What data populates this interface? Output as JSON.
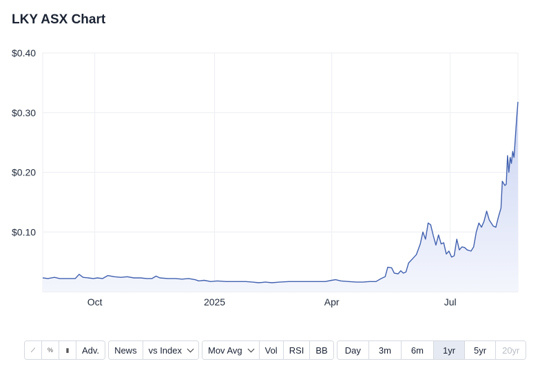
{
  "title": "LKY ASX Chart",
  "chart_data": {
    "type": "area",
    "ylim": [
      0,
      0.4
    ],
    "y_ticks": [
      {
        "value": 0.1,
        "label": "$0.10"
      },
      {
        "value": 0.2,
        "label": "$0.20"
      },
      {
        "value": 0.3,
        "label": "$0.30"
      },
      {
        "value": 0.4,
        "label": "$0.40"
      }
    ],
    "x_range": [
      "2024-08-22",
      "2025-08-22"
    ],
    "x_ticks": [
      {
        "date": "2024-10-01",
        "label": "Oct"
      },
      {
        "date": "2025-01-01",
        "label": "2025"
      },
      {
        "date": "2025-04-01",
        "label": "Apr"
      },
      {
        "date": "2025-07-01",
        "label": "Jul"
      }
    ],
    "grid": true,
    "colors": {
      "line": "#3f5fae",
      "fill_top": "#c9d3f2",
      "fill_bottom": "#f4f6fd",
      "grid": "#eceef2"
    },
    "series": [
      {
        "points": [
          [
            "2024-08-22",
            0.023
          ],
          [
            "2024-08-26",
            0.022
          ],
          [
            "2024-08-31",
            0.024
          ],
          [
            "2024-09-04",
            0.022
          ],
          [
            "2024-09-08",
            0.022
          ],
          [
            "2024-09-12",
            0.022
          ],
          [
            "2024-09-16",
            0.022
          ],
          [
            "2024-09-19",
            0.029
          ],
          [
            "2024-09-22",
            0.024
          ],
          [
            "2024-09-26",
            0.023
          ],
          [
            "2024-09-30",
            0.022
          ],
          [
            "2024-10-03",
            0.023
          ],
          [
            "2024-10-07",
            0.022
          ],
          [
            "2024-10-11",
            0.027
          ],
          [
            "2024-10-16",
            0.025
          ],
          [
            "2024-10-21",
            0.024
          ],
          [
            "2024-10-26",
            0.025
          ],
          [
            "2024-10-31",
            0.023
          ],
          [
            "2024-11-05",
            0.023
          ],
          [
            "2024-11-10",
            0.022
          ],
          [
            "2024-11-14",
            0.022
          ],
          [
            "2024-11-17",
            0.026
          ],
          [
            "2024-11-20",
            0.023
          ],
          [
            "2024-11-26",
            0.022
          ],
          [
            "2024-12-02",
            0.022
          ],
          [
            "2024-12-07",
            0.021
          ],
          [
            "2024-12-12",
            0.022
          ],
          [
            "2024-12-17",
            0.02
          ],
          [
            "2024-12-20",
            0.018
          ],
          [
            "2024-12-24",
            0.019
          ],
          [
            "2024-12-29",
            0.017
          ],
          [
            "2025-01-03",
            0.018
          ],
          [
            "2025-01-10",
            0.017
          ],
          [
            "2025-01-20",
            0.017
          ],
          [
            "2025-01-25",
            0.017
          ],
          [
            "2025-01-30",
            0.016
          ],
          [
            "2025-02-04",
            0.015
          ],
          [
            "2025-02-09",
            0.016
          ],
          [
            "2025-02-14",
            0.015
          ],
          [
            "2025-02-20",
            0.016
          ],
          [
            "2025-02-27",
            0.017
          ],
          [
            "2025-03-08",
            0.017
          ],
          [
            "2025-03-20",
            0.017
          ],
          [
            "2025-03-27",
            0.017
          ],
          [
            "2025-04-01",
            0.019
          ],
          [
            "2025-04-04",
            0.02
          ],
          [
            "2025-04-08",
            0.018
          ],
          [
            "2025-04-14",
            0.017
          ],
          [
            "2025-04-20",
            0.016
          ],
          [
            "2025-04-25",
            0.016
          ],
          [
            "2025-04-30",
            0.017
          ],
          [
            "2025-05-05",
            0.017
          ],
          [
            "2025-05-09",
            0.022
          ],
          [
            "2025-05-12",
            0.025
          ],
          [
            "2025-05-14",
            0.041
          ],
          [
            "2025-05-17",
            0.04
          ],
          [
            "2025-05-19",
            0.031
          ],
          [
            "2025-05-22",
            0.03
          ],
          [
            "2025-05-24",
            0.035
          ],
          [
            "2025-05-26",
            0.031
          ],
          [
            "2025-05-28",
            0.033
          ],
          [
            "2025-05-30",
            0.048
          ],
          [
            "2025-06-02",
            0.055
          ],
          [
            "2025-06-05",
            0.062
          ],
          [
            "2025-06-08",
            0.08
          ],
          [
            "2025-06-10",
            0.1
          ],
          [
            "2025-06-12",
            0.088
          ],
          [
            "2025-06-14",
            0.115
          ],
          [
            "2025-06-16",
            0.112
          ],
          [
            "2025-06-18",
            0.094
          ],
          [
            "2025-06-20",
            0.078
          ],
          [
            "2025-06-22",
            0.095
          ],
          [
            "2025-06-24",
            0.08
          ],
          [
            "2025-06-26",
            0.082
          ],
          [
            "2025-06-28",
            0.063
          ],
          [
            "2025-06-30",
            0.068
          ],
          [
            "2025-07-02",
            0.058
          ],
          [
            "2025-07-04",
            0.06
          ],
          [
            "2025-07-06",
            0.088
          ],
          [
            "2025-07-08",
            0.07
          ],
          [
            "2025-07-10",
            0.075
          ],
          [
            "2025-07-12",
            0.074
          ],
          [
            "2025-07-14",
            0.07
          ],
          [
            "2025-07-17",
            0.068
          ],
          [
            "2025-07-19",
            0.075
          ],
          [
            "2025-07-21",
            0.1
          ],
          [
            "2025-07-23",
            0.115
          ],
          [
            "2025-07-25",
            0.108
          ],
          [
            "2025-07-27",
            0.118
          ],
          [
            "2025-07-29",
            0.135
          ],
          [
            "2025-07-31",
            0.12
          ],
          [
            "2025-08-03",
            0.11
          ],
          [
            "2025-08-05",
            0.108
          ],
          [
            "2025-08-07",
            0.125
          ],
          [
            "2025-08-09",
            0.14
          ],
          [
            "2025-08-10",
            0.185
          ],
          [
            "2025-08-12",
            0.178
          ],
          [
            "2025-08-13",
            0.18
          ],
          [
            "2025-08-14",
            0.228
          ],
          [
            "2025-08-15",
            0.2
          ],
          [
            "2025-08-16",
            0.225
          ],
          [
            "2025-08-17",
            0.215
          ],
          [
            "2025-08-18",
            0.235
          ],
          [
            "2025-08-19",
            0.225
          ],
          [
            "2025-08-21",
            0.29
          ],
          [
            "2025-08-22",
            0.318
          ]
        ]
      }
    ]
  },
  "toolbar": {
    "chart_type_group": [
      {
        "icon": "line-chart-icon",
        "glyph": "⟋",
        "active": true
      },
      {
        "icon": "percent-chart-icon",
        "glyph": "%",
        "active": false
      },
      {
        "icon": "candlestick-icon",
        "glyph": "▮",
        "active": false
      }
    ],
    "adv_label": "Adv.",
    "news_label": "News",
    "index_label": "vs Index",
    "movavg_label": "Mov Avg",
    "vol_label": "Vol",
    "rsi_label": "RSI",
    "bb_label": "BB",
    "ranges": [
      {
        "label": "Day",
        "active": false,
        "disabled": false
      },
      {
        "label": "3m",
        "active": false,
        "disabled": false
      },
      {
        "label": "6m",
        "active": false,
        "disabled": false
      },
      {
        "label": "1yr",
        "active": true,
        "disabled": false
      },
      {
        "label": "5yr",
        "active": false,
        "disabled": false
      },
      {
        "label": "20yr",
        "active": false,
        "disabled": true
      }
    ]
  }
}
